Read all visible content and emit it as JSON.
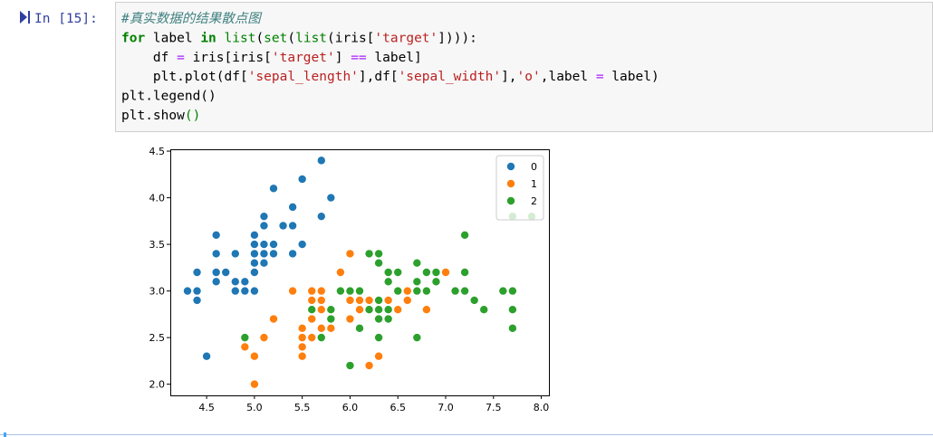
{
  "cell": {
    "prompt": "In [15]:",
    "lines": [
      [
        {
          "text": "#真实数据的结果散点图",
          "color": "#408080",
          "style": "italic"
        }
      ],
      [
        {
          "text": "for",
          "color": "#008000",
          "weight": "bold"
        },
        {
          "text": " label ",
          "color": "#000000"
        },
        {
          "text": "in",
          "color": "#008000",
          "weight": "bold"
        },
        {
          "text": " ",
          "color": "#000000"
        },
        {
          "text": "list",
          "color": "#008000"
        },
        {
          "text": "(",
          "color": "#000000"
        },
        {
          "text": "set",
          "color": "#008000"
        },
        {
          "text": "(",
          "color": "#000000"
        },
        {
          "text": "list",
          "color": "#008000"
        },
        {
          "text": "(iris[",
          "color": "#000000"
        },
        {
          "text": "'target'",
          "color": "#ba2121"
        },
        {
          "text": "]))):",
          "color": "#000000"
        }
      ],
      [
        {
          "text": "    df ",
          "color": "#000000"
        },
        {
          "text": "=",
          "color": "#aa22ff"
        },
        {
          "text": " iris[iris[",
          "color": "#000000"
        },
        {
          "text": "'target'",
          "color": "#ba2121"
        },
        {
          "text": "] ",
          "color": "#000000"
        },
        {
          "text": "==",
          "color": "#aa22ff"
        },
        {
          "text": " label]",
          "color": "#000000"
        }
      ],
      [
        {
          "text": "    plt.plot(df[",
          "color": "#000000"
        },
        {
          "text": "'sepal_length'",
          "color": "#ba2121"
        },
        {
          "text": "],df[",
          "color": "#000000"
        },
        {
          "text": "'sepal_width'",
          "color": "#ba2121"
        },
        {
          "text": "],",
          "color": "#000000"
        },
        {
          "text": "'o'",
          "color": "#ba2121"
        },
        {
          "text": ",label ",
          "color": "#000000"
        },
        {
          "text": "=",
          "color": "#aa22ff"
        },
        {
          "text": " label)",
          "color": "#000000"
        }
      ],
      [
        {
          "text": "plt.legend()",
          "color": "#000000"
        }
      ],
      [
        {
          "text": "plt.show",
          "color": "#000000"
        },
        {
          "text": "()",
          "color": "#008000"
        }
      ]
    ]
  },
  "chart_data": {
    "type": "scatter",
    "legend": "upper right",
    "grid": false,
    "xlim": [
      4.12,
      8.08
    ],
    "ylim": [
      1.88,
      4.52
    ],
    "xticks": [
      4.5,
      {
        "value": 5.0,
        "label": "5.0"
      },
      5.5,
      {
        "value": 6.0,
        "label": "6.0"
      },
      6.5,
      {
        "value": 7.0,
        "label": "7.0"
      },
      7.5,
      {
        "value": 8.0,
        "label": "8.0"
      }
    ],
    "yticks": [
      {
        "value": 2.0,
        "label": "2.0"
      },
      2.5,
      {
        "value": 3.0,
        "label": "3.0"
      },
      3.5,
      {
        "value": 4.0,
        "label": "4.0"
      },
      4.5
    ],
    "series": [
      {
        "name": "0",
        "color": "#1f77b4",
        "x": [
          5.1,
          4.9,
          4.7,
          4.6,
          5.0,
          5.4,
          4.6,
          5.0,
          4.4,
          4.9,
          5.4,
          4.8,
          4.8,
          4.3,
          5.8,
          5.7,
          5.4,
          5.1,
          5.7,
          5.1,
          5.4,
          5.1,
          4.6,
          5.1,
          4.8,
          5.0,
          5.0,
          5.2,
          5.2,
          4.7,
          4.8,
          5.4,
          5.2,
          5.5,
          4.9,
          5.0,
          5.5,
          4.9,
          4.4,
          5.1,
          5.0,
          4.5,
          4.4,
          5.0,
          5.1,
          4.8,
          5.1,
          4.6,
          5.3,
          5.0
        ],
        "values": [
          3.5,
          3.0,
          3.2,
          3.1,
          3.6,
          3.9,
          3.4,
          3.4,
          2.9,
          3.1,
          3.7,
          3.4,
          3.0,
          3.0,
          4.0,
          4.4,
          3.9,
          3.5,
          3.8,
          3.8,
          3.4,
          3.7,
          3.6,
          3.3,
          3.4,
          3.0,
          3.4,
          3.5,
          3.4,
          3.2,
          3.1,
          3.4,
          4.1,
          4.2,
          3.1,
          3.2,
          3.5,
          3.1,
          3.0,
          3.4,
          3.5,
          2.3,
          3.2,
          3.5,
          3.8,
          3.0,
          3.8,
          3.2,
          3.7,
          3.3
        ]
      },
      {
        "name": "1",
        "color": "#ff7f0e",
        "x": [
          7.0,
          6.4,
          6.9,
          5.5,
          6.5,
          5.7,
          6.3,
          4.9,
          6.6,
          5.2,
          5.0,
          5.9,
          6.0,
          6.1,
          5.6,
          6.7,
          5.6,
          5.8,
          6.2,
          5.6,
          5.9,
          6.1,
          6.3,
          6.1,
          6.4,
          6.6,
          6.8,
          6.7,
          6.0,
          5.7,
          5.5,
          5.5,
          5.8,
          6.0,
          5.4,
          6.0,
          6.7,
          6.3,
          5.6,
          5.5,
          5.5,
          6.1,
          5.8,
          5.0,
          5.6,
          5.7,
          5.7,
          6.2,
          5.1,
          5.7
        ],
        "values": [
          3.2,
          3.2,
          3.1,
          2.3,
          2.8,
          2.8,
          3.3,
          2.4,
          2.9,
          2.7,
          2.0,
          3.0,
          2.2,
          2.9,
          2.9,
          3.1,
          3.0,
          2.7,
          2.2,
          2.5,
          3.2,
          2.8,
          2.5,
          2.8,
          2.9,
          3.0,
          2.8,
          3.0,
          2.9,
          2.6,
          2.4,
          2.4,
          2.7,
          2.7,
          3.0,
          3.4,
          3.1,
          2.3,
          3.0,
          2.5,
          2.6,
          3.0,
          2.6,
          2.3,
          2.7,
          3.0,
          2.9,
          2.9,
          2.5,
          2.8
        ]
      },
      {
        "name": "2",
        "color": "#2ca02c",
        "x": [
          6.3,
          5.8,
          7.1,
          6.3,
          6.5,
          7.6,
          4.9,
          7.3,
          6.7,
          7.2,
          6.5,
          6.4,
          6.8,
          5.7,
          5.8,
          6.4,
          6.5,
          7.7,
          7.7,
          6.0,
          6.9,
          5.6,
          7.7,
          6.3,
          6.7,
          7.2,
          6.2,
          6.1,
          6.4,
          7.2,
          7.4,
          7.9,
          6.4,
          6.3,
          6.1,
          7.7,
          6.3,
          6.4,
          6.0,
          6.9,
          6.7,
          6.9,
          5.8,
          6.8,
          6.7,
          6.7,
          6.3,
          6.5,
          6.2,
          5.9
        ],
        "values": [
          3.3,
          2.7,
          3.0,
          2.9,
          3.0,
          3.0,
          2.5,
          2.9,
          2.5,
          3.6,
          3.2,
          2.7,
          3.0,
          2.5,
          2.8,
          3.2,
          3.0,
          3.8,
          2.6,
          2.2,
          3.2,
          2.8,
          2.8,
          2.7,
          3.3,
          3.2,
          2.8,
          3.0,
          2.8,
          3.0,
          2.8,
          3.8,
          2.8,
          2.8,
          2.6,
          3.0,
          3.4,
          3.1,
          3.0,
          3.1,
          3.1,
          3.1,
          2.7,
          3.2,
          3.3,
          3.0,
          2.5,
          3.0,
          3.4,
          3.0
        ]
      }
    ]
  }
}
